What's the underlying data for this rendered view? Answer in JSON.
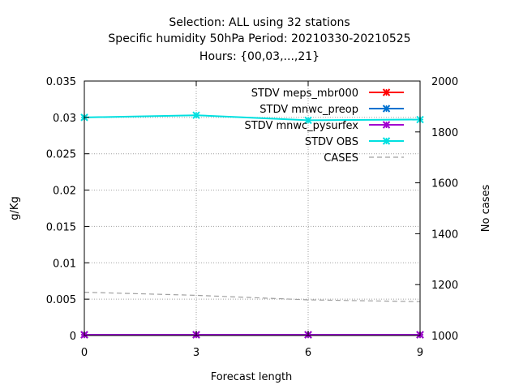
{
  "chart_data": {
    "type": "line",
    "title_lines": [
      "Selection: ALL using    32 stations",
      "Specific humidity 50hPa   Period: 20210330-20210525",
      "Hours: {00,03,...,21}"
    ],
    "xlabel": "Forecast length",
    "ylabel": "g/Kg",
    "y2label": "No cases",
    "x": [
      0,
      3,
      6,
      9
    ],
    "xticks": [
      "0",
      "3",
      "6",
      "9"
    ],
    "xlim": [
      0,
      9
    ],
    "ylim": [
      0,
      0.035
    ],
    "yticks": [
      "0",
      "0.005",
      "0.01",
      "0.015",
      "0.02",
      "0.025",
      "0.03",
      "0.035"
    ],
    "y2lim": [
      1000,
      2000
    ],
    "y2ticks": [
      "1000",
      "1200",
      "1400",
      "1600",
      "1800",
      "2000"
    ],
    "grid": true,
    "legend_position": "top-right",
    "series": [
      {
        "name": "STDV meps_mbr000",
        "color": "#ff0000",
        "marker": "x",
        "axis": "y1",
        "values": [
          0.0001,
          0.0001,
          0.0001,
          0.0001
        ]
      },
      {
        "name": "STDV mnwc_preop",
        "color": "#0072d0",
        "marker": "x",
        "axis": "y1",
        "values": [
          0.0001,
          0.0001,
          0.0001,
          0.0001
        ]
      },
      {
        "name": "STDV mnwc_pysurfex",
        "color": "#a000d0",
        "marker": "x",
        "axis": "y1",
        "values": [
          0.0001,
          0.0001,
          0.0001,
          0.0001
        ]
      },
      {
        "name": "STDV OBS",
        "color": "#00e0e0",
        "marker": "x",
        "axis": "y1",
        "values": [
          0.03,
          0.0303,
          0.0296,
          0.0297
        ]
      },
      {
        "name": "CASES",
        "color": "#a0a0a0",
        "marker": "none",
        "dashed": true,
        "axis": "y2",
        "values": [
          1170,
          1158,
          1140,
          1133
        ]
      }
    ]
  }
}
